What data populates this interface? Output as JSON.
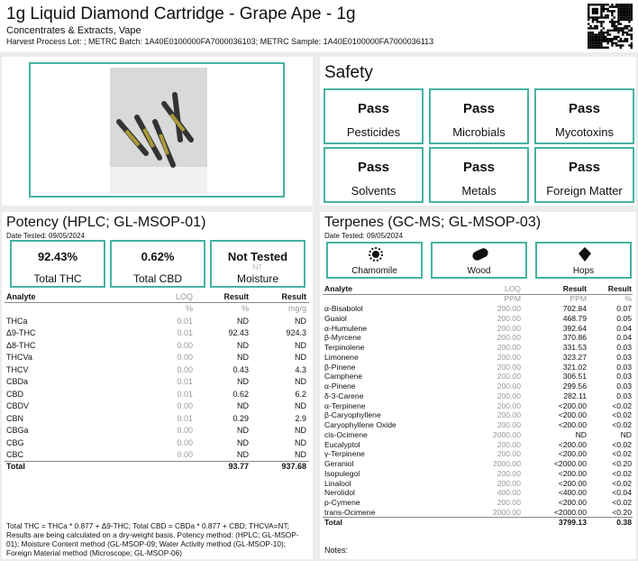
{
  "header": {
    "title": "1g Liquid Diamond Cartridge - Grape Ape - 1g",
    "subtitle": "Concentrates & Extracts, Vape",
    "harvest": "Harvest Process Lot: ; METRC Batch: 1A40E0100000FA7000036103; METRC Sample: 1A40E0100000FA7000036113"
  },
  "safety": {
    "title": "Safety",
    "tests": [
      {
        "status": "Pass",
        "name": "Pesticides"
      },
      {
        "status": "Pass",
        "name": "Microbials"
      },
      {
        "status": "Pass",
        "name": "Mycotoxins"
      },
      {
        "status": "Pass",
        "name": "Solvents"
      },
      {
        "status": "Pass",
        "name": "Metals"
      },
      {
        "status": "Pass",
        "name": "Foreign Matter"
      }
    ]
  },
  "potency": {
    "title": "Potency (HPLC; GL-MSOP-01)",
    "date": "Date Tested: 09/05/2024",
    "summary": [
      {
        "value": "92.43%",
        "label": "Total THC"
      },
      {
        "value": "0.62%",
        "label": "Total CBD"
      },
      {
        "value": "Not Tested",
        "code": "NT",
        "label": "Moisture"
      }
    ],
    "table": {
      "columns": [
        "Analyte",
        "LOQ",
        "Result",
        "Result"
      ],
      "units": [
        "%",
        "%",
        "mg/g"
      ],
      "rows": [
        [
          "THCa",
          "0.01",
          "ND",
          "ND"
        ],
        [
          "Δ9-THC",
          "0.01",
          "92.43",
          "924.3"
        ],
        [
          "Δ8-THC",
          "0.00",
          "ND",
          "ND"
        ],
        [
          "THCVa",
          "0.00",
          "ND",
          "ND"
        ],
        [
          "THCV",
          "0.00",
          "0.43",
          "4.3"
        ],
        [
          "CBDa",
          "0.01",
          "ND",
          "ND"
        ],
        [
          "CBD",
          "0.01",
          "0.62",
          "6.2"
        ],
        [
          "CBDV",
          "0.00",
          "ND",
          "ND"
        ],
        [
          "CBN",
          "0.01",
          "0.29",
          "2.9"
        ],
        [
          "CBGa",
          "0.00",
          "ND",
          "ND"
        ],
        [
          "CBG",
          "0.00",
          "ND",
          "ND"
        ],
        [
          "CBC",
          "0.00",
          "ND",
          "ND"
        ]
      ],
      "total": [
        "Total",
        "93.77",
        "937.68"
      ]
    },
    "footnote": [
      "Total THC = THCa * 0.877 + Δ9-THC; Total CBD = CBDa * 0.877 + CBD; THCVA=NT;",
      "Results are being calculated on a dry-weight basis. Potency method: (HPLC; GL-MSOP-",
      "01); Moisture Content method (GL-MSOP-09; Water Activity method (GL-MSOP-10);",
      "Foreign Material method (Microscope; GL-MSOP-06)"
    ]
  },
  "terpenes": {
    "title": "Terpenes (GC-MS; GL-MSOP-03)",
    "date": "Date Tested: 09/05/2024",
    "aromas": [
      "Chamomile",
      "Wood",
      "Hops"
    ],
    "table": {
      "columns": [
        "Analyte",
        "LOQ",
        "Result",
        "Result"
      ],
      "units": [
        "PPM",
        "PPM",
        "%"
      ],
      "rows": [
        [
          "α-Bisabolol",
          "200.00",
          "702.84",
          "0.07"
        ],
        [
          "Guaiol",
          "200.00",
          "468.79",
          "0.05"
        ],
        [
          "α-Humulene",
          "200.00",
          "392.64",
          "0.04"
        ],
        [
          "β-Myrcene",
          "200.00",
          "370.86",
          "0.04"
        ],
        [
          "Terpinolene",
          "200.00",
          "331.53",
          "0.03"
        ],
        [
          "Limonene",
          "200.00",
          "323.27",
          "0.03"
        ],
        [
          "β-Pinene",
          "200.00",
          "321.02",
          "0.03"
        ],
        [
          "Camphene",
          "200.00",
          "306.51",
          "0.03"
        ],
        [
          "α-Pinene",
          "200.00",
          "299.56",
          "0.03"
        ],
        [
          "δ-3-Carene",
          "200.00",
          "282.11",
          "0.03"
        ],
        [
          "α-Terpinene",
          "200.00",
          "<200.00",
          "<0.02"
        ],
        [
          "β-Caryophyllene",
          "200.00",
          "<200.00",
          "<0.02"
        ],
        [
          "Caryophyllene Oxide",
          "200.00",
          "<200.00",
          "<0.02"
        ],
        [
          "cis-Ocimene",
          "2000.00",
          "ND",
          "ND"
        ],
        [
          "Eucalyptol",
          "200.00",
          "<200.00",
          "<0.02"
        ],
        [
          "γ-Terpinene",
          "200.00",
          "<200.00",
          "<0.02"
        ],
        [
          "Geraniol",
          "2000.00",
          "<2000.00",
          "<0.20"
        ],
        [
          "Isopulegol",
          "200.00",
          "<200.00",
          "<0.02"
        ],
        [
          "Linalool",
          "200.00",
          "<200.00",
          "<0.02"
        ],
        [
          "Nerolidol",
          "400.00",
          "<400.00",
          "<0.04"
        ],
        [
          "p-Cymene",
          "200.00",
          "<200.00",
          "<0.02"
        ],
        [
          "trans-Ocimene",
          "2000.00",
          "<2000.00",
          "<0.20"
        ]
      ],
      "total": [
        "Total",
        "3799.13",
        "0.38"
      ]
    },
    "notes": "Notes:"
  }
}
